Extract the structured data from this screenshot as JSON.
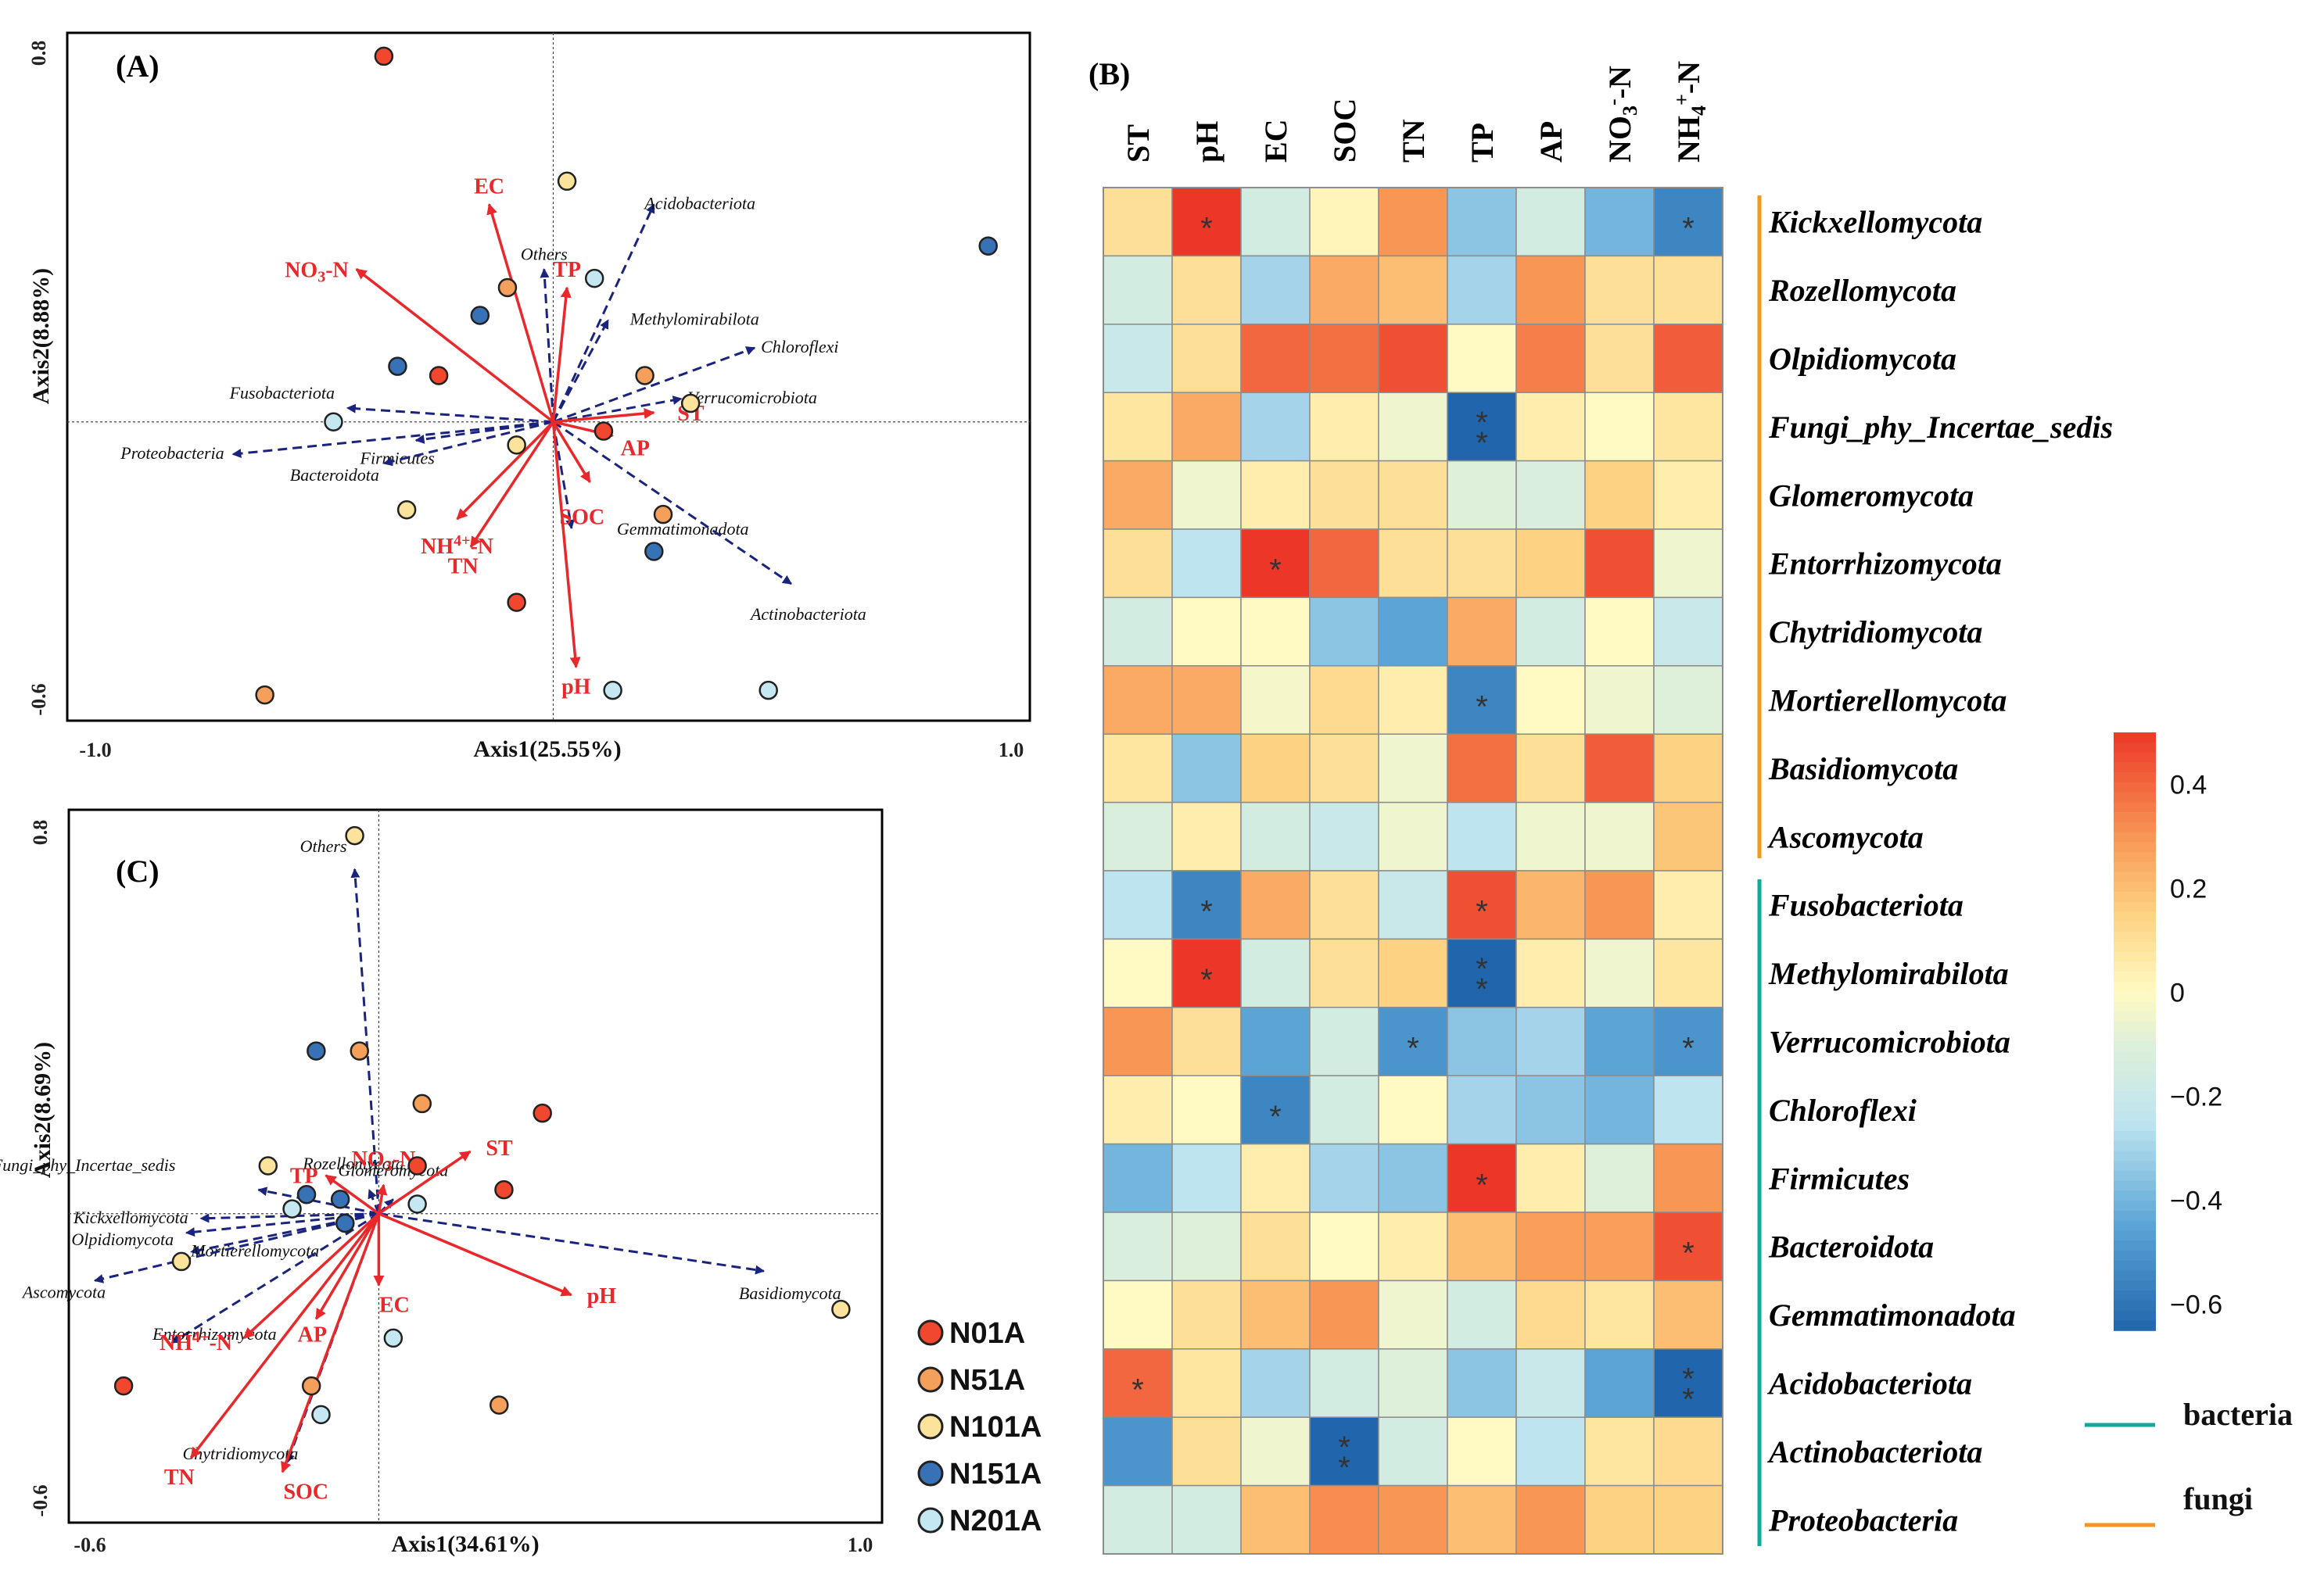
{
  "colors": {
    "env_arrow": "#e8282a",
    "taxa_arrow": "#1a237e",
    "bacteria_line": "#12a99b",
    "fungi_line": "#f0981f",
    "groups": {
      "N01A": "#f0472e",
      "N51A": "#f5a05a",
      "N101A": "#fbe39b",
      "N151A": "#3771b6",
      "N201A": "#c4e7f2"
    }
  },
  "legend": {
    "groups": [
      {
        "name": "N01A",
        "color": "#f0472e"
      },
      {
        "name": "N51A",
        "color": "#f5a05a"
      },
      {
        "name": "N101A",
        "color": "#fbe39b"
      },
      {
        "name": "N151A",
        "color": "#3771b6"
      },
      {
        "name": "N201A",
        "color": "#c4e7f2"
      }
    ],
    "lines": [
      {
        "name": "bacteria",
        "color": "#12a99b"
      },
      {
        "name": "fungi",
        "color": "#f0981f"
      }
    ]
  },
  "chart_data": [
    {
      "panel": "(A)",
      "type": "scatter",
      "xlabel": "Axis1(25.55%)",
      "ylabel": "Axis2(8.88%)",
      "xlim": [
        -1.0,
        1.0
      ],
      "ylim": [
        -0.6,
        0.8
      ],
      "xticks": [
        "-1.0",
        "1.0"
      ],
      "yticks": [
        "0.8",
        "-0.6"
      ],
      "env_vectors": [
        {
          "name": "EC",
          "x": -0.14,
          "y": 0.47
        },
        {
          "name": "NO3-N",
          "x": -0.43,
          "y": 0.33
        },
        {
          "name": "TP",
          "x": 0.03,
          "y": 0.29
        },
        {
          "name": "ST",
          "x": 0.22,
          "y": 0.02
        },
        {
          "name": "AP",
          "x": 0.13,
          "y": -0.03
        },
        {
          "name": "SOC",
          "x": 0.08,
          "y": -0.13
        },
        {
          "name": "NH4+-N",
          "x": -0.21,
          "y": -0.21
        },
        {
          "name": "TN",
          "x": -0.18,
          "y": -0.27
        },
        {
          "name": "pH",
          "x": 0.05,
          "y": -0.53
        }
      ],
      "taxa_vectors": [
        {
          "name": "Acidobacteriota",
          "x": 0.22,
          "y": 0.47
        },
        {
          "name": "Others",
          "x": -0.02,
          "y": 0.33
        },
        {
          "name": "Methylomirabilota",
          "x": 0.12,
          "y": 0.22
        },
        {
          "name": "Chloroflexi",
          "x": 0.44,
          "y": 0.16
        },
        {
          "name": "Verrucomicrobiota",
          "x": 0.28,
          "y": 0.05
        },
        {
          "name": "Fusobacteriota",
          "x": -0.45,
          "y": 0.03
        },
        {
          "name": "Proteobacteria",
          "x": -0.7,
          "y": -0.07
        },
        {
          "name": "Firmicutes",
          "x": -0.3,
          "y": -0.04
        },
        {
          "name": "Bacteroidota",
          "x": -0.37,
          "y": -0.09
        },
        {
          "name": "Gemmatimonadota",
          "x": 0.04,
          "y": -0.23
        },
        {
          "name": "Actinobacteriota",
          "x": 0.52,
          "y": -0.35
        }
      ],
      "points": [
        {
          "group": "N01A",
          "x": -0.37,
          "y": 0.79
        },
        {
          "group": "N01A",
          "x": -0.25,
          "y": 0.1
        },
        {
          "group": "N01A",
          "x": -0.08,
          "y": -0.39
        },
        {
          "group": "N01A",
          "x": 0.11,
          "y": -0.02
        },
        {
          "group": "N51A",
          "x": -0.63,
          "y": -0.59
        },
        {
          "group": "N51A",
          "x": -0.1,
          "y": 0.29
        },
        {
          "group": "N51A",
          "x": 0.2,
          "y": 0.1
        },
        {
          "group": "N51A",
          "x": 0.24,
          "y": -0.2
        },
        {
          "group": "N101A",
          "x": 0.03,
          "y": 0.52
        },
        {
          "group": "N101A",
          "x": 0.3,
          "y": 0.04
        },
        {
          "group": "N101A",
          "x": -0.08,
          "y": -0.05
        },
        {
          "group": "N101A",
          "x": -0.32,
          "y": -0.19
        },
        {
          "group": "N151A",
          "x": -0.16,
          "y": 0.23
        },
        {
          "group": "N151A",
          "x": -0.34,
          "y": 0.12
        },
        {
          "group": "N151A",
          "x": 0.95,
          "y": 0.38
        },
        {
          "group": "N151A",
          "x": 0.22,
          "y": -0.28
        },
        {
          "group": "N201A",
          "x": 0.09,
          "y": 0.31
        },
        {
          "group": "N201A",
          "x": -0.48,
          "y": 0.0
        },
        {
          "group": "N201A",
          "x": 0.13,
          "y": -0.58
        },
        {
          "group": "N201A",
          "x": 0.47,
          "y": -0.58
        }
      ]
    },
    {
      "panel": "(C)",
      "type": "scatter",
      "xlabel": "Axis1(34.61%)",
      "ylabel": "Axis2(8.69%)",
      "xlim": [
        -0.6,
        1.0
      ],
      "ylim": [
        -0.6,
        0.8
      ],
      "xticks": [
        "-0.6",
        "1.0"
      ],
      "yticks": [
        "0.8",
        "-0.6"
      ],
      "env_vectors": [
        {
          "name": "NO3-N",
          "x": 0.01,
          "y": 0.06
        },
        {
          "name": "ST",
          "x": 0.19,
          "y": 0.13
        },
        {
          "name": "TP",
          "x": -0.11,
          "y": 0.08
        },
        {
          "name": "EC",
          "x": 0.0,
          "y": -0.15
        },
        {
          "name": "pH",
          "x": 0.4,
          "y": -0.17
        },
        {
          "name": "AP",
          "x": -0.13,
          "y": -0.22
        },
        {
          "name": "NH4+-N",
          "x": -0.28,
          "y": -0.26
        },
        {
          "name": "TN",
          "x": -0.39,
          "y": -0.51
        },
        {
          "name": "SOC",
          "x": -0.2,
          "y": -0.54
        }
      ],
      "taxa_vectors": [
        {
          "name": "Others",
          "x": -0.05,
          "y": 0.72
        },
        {
          "name": "Rozellomycota",
          "x": -0.02,
          "y": 0.05
        },
        {
          "name": "Fungi_phy_Incertae_sedis",
          "x": -0.25,
          "y": 0.05
        },
        {
          "name": "Kickxellomycota",
          "x": -0.37,
          "y": -0.01
        },
        {
          "name": "Olpidiomycota",
          "x": -0.4,
          "y": -0.04
        },
        {
          "name": "Mortierellomycota",
          "x": -0.39,
          "y": -0.08
        },
        {
          "name": "Ascomycota",
          "x": -0.59,
          "y": -0.14
        },
        {
          "name": "Entorrhizomycota",
          "x": -0.43,
          "y": -0.27
        },
        {
          "name": "Glomeromycota",
          "x": 0.03,
          "y": 0.03
        },
        {
          "name": "Basidiomycota",
          "x": 0.8,
          "y": -0.12
        },
        {
          "name": "Chytridiomycota",
          "x": -0.19,
          "y": -0.52
        }
      ],
      "points": [
        {
          "group": "N01A",
          "x": 0.34,
          "y": 0.21
        },
        {
          "group": "N01A",
          "x": 0.08,
          "y": 0.1
        },
        {
          "group": "N01A",
          "x": 0.26,
          "y": 0.05
        },
        {
          "group": "N01A",
          "x": -0.53,
          "y": -0.36
        },
        {
          "group": "N51A",
          "x": -0.04,
          "y": 0.34
        },
        {
          "group": "N51A",
          "x": 0.09,
          "y": 0.23
        },
        {
          "group": "N51A",
          "x": 0.25,
          "y": -0.4
        },
        {
          "group": "N51A",
          "x": -0.14,
          "y": -0.36
        },
        {
          "group": "N101A",
          "x": -0.05,
          "y": 0.79
        },
        {
          "group": "N101A",
          "x": -0.23,
          "y": 0.1
        },
        {
          "group": "N101A",
          "x": -0.41,
          "y": -0.1
        },
        {
          "group": "N101A",
          "x": 0.96,
          "y": -0.2
        },
        {
          "group": "N151A",
          "x": -0.13,
          "y": 0.34
        },
        {
          "group": "N151A",
          "x": -0.15,
          "y": 0.04
        },
        {
          "group": "N151A",
          "x": -0.08,
          "y": 0.03
        },
        {
          "group": "N151A",
          "x": -0.07,
          "y": -0.02
        },
        {
          "group": "N201A",
          "x": -0.18,
          "y": 0.01
        },
        {
          "group": "N201A",
          "x": 0.08,
          "y": 0.02
        },
        {
          "group": "N201A",
          "x": 0.03,
          "y": -0.26
        },
        {
          "group": "N201A",
          "x": -0.12,
          "y": -0.42
        }
      ]
    },
    {
      "panel": "(B)",
      "type": "heatmap",
      "columns": [
        "ST",
        "pH",
        "EC",
        "SOC",
        "TN",
        "TP",
        "AP",
        "NO3- -N",
        "NH4+-N"
      ],
      "rows": [
        "Kickxellomycota",
        "Rozellomycota",
        "Olpidiomycota",
        "Fungi_phy_Incertae_sedis",
        "Glomeromycota",
        "Entorrhizomycota",
        "Chytridiomycota",
        "Mortierellomycota",
        "Basidiomycota",
        "Ascomycota",
        "Fusobacteriota",
        "Methylomirabilota",
        "Verrucomicrobiota",
        "Chloroflexi",
        "Firmicutes",
        "Bacteroidota",
        "Gemmatimonadota",
        "Acidobacteriota",
        "Actinobacteriota",
        "Proteobacteria"
      ],
      "row_groups": [
        {
          "name": "fungi",
          "from": 0,
          "to": 9
        },
        {
          "name": "bacteria",
          "from": 10,
          "to": 19
        }
      ],
      "values": [
        [
          0.1,
          0.5,
          -0.15,
          0.02,
          0.3,
          -0.35,
          -0.15,
          -0.4,
          -0.55
        ],
        [
          -0.15,
          0.1,
          -0.3,
          0.25,
          0.2,
          -0.3,
          0.3,
          0.1,
          0.1
        ],
        [
          -0.2,
          0.1,
          0.4,
          0.38,
          0.45,
          0.0,
          0.35,
          0.1,
          0.42
        ],
        [
          0.08,
          0.25,
          -0.3,
          0.05,
          -0.05,
          -0.65,
          0.05,
          0.0,
          0.08
        ],
        [
          0.25,
          -0.05,
          0.05,
          0.1,
          0.1,
          -0.1,
          -0.12,
          0.15,
          0.05
        ],
        [
          0.1,
          -0.25,
          0.5,
          0.4,
          0.1,
          0.1,
          0.15,
          0.45,
          -0.05
        ],
        [
          -0.15,
          0.0,
          0.0,
          -0.35,
          -0.45,
          0.25,
          -0.15,
          0.0,
          -0.2
        ],
        [
          0.25,
          0.25,
          -0.03,
          0.12,
          0.05,
          -0.55,
          0.0,
          -0.05,
          -0.1
        ],
        [
          0.08,
          -0.35,
          0.15,
          0.1,
          -0.05,
          0.38,
          0.1,
          0.42,
          0.15
        ],
        [
          -0.12,
          0.05,
          -0.15,
          -0.2,
          -0.05,
          -0.25,
          -0.05,
          -0.05,
          0.18
        ],
        [
          -0.25,
          -0.55,
          0.25,
          0.1,
          -0.2,
          0.45,
          0.22,
          0.3,
          0.05
        ],
        [
          0.0,
          0.5,
          -0.15,
          0.1,
          0.15,
          -0.65,
          0.05,
          -0.05,
          0.08
        ],
        [
          0.3,
          0.1,
          -0.45,
          -0.15,
          -0.5,
          -0.35,
          -0.3,
          -0.45,
          -0.5
        ],
        [
          0.05,
          0.0,
          -0.55,
          -0.15,
          0.0,
          -0.3,
          -0.35,
          -0.4,
          -0.25
        ],
        [
          -0.4,
          -0.25,
          0.05,
          -0.3,
          -0.35,
          0.5,
          0.05,
          -0.1,
          0.3
        ],
        [
          -0.12,
          -0.1,
          0.1,
          0.0,
          0.05,
          0.2,
          0.28,
          0.28,
          0.45
        ],
        [
          0.0,
          0.1,
          0.2,
          0.3,
          -0.05,
          -0.15,
          0.12,
          0.08,
          0.2
        ],
        [
          0.4,
          0.08,
          -0.3,
          -0.15,
          -0.1,
          -0.35,
          -0.2,
          -0.45,
          -0.65
        ],
        [
          -0.5,
          0.1,
          -0.05,
          -0.65,
          -0.15,
          0.0,
          -0.25,
          0.08,
          0.12
        ],
        [
          -0.15,
          -0.15,
          0.2,
          0.32,
          0.3,
          0.2,
          0.3,
          0.15,
          0.15
        ]
      ],
      "significance": [
        [
          "",
          "*",
          "",
          "",
          "",
          "",
          "",
          "",
          "*"
        ],
        [
          "",
          "",
          "",
          "",
          "",
          "",
          "",
          "",
          ""
        ],
        [
          "",
          "",
          "",
          "",
          "",
          "",
          "",
          "",
          ""
        ],
        [
          "",
          "",
          "",
          "",
          "",
          "**",
          "",
          "",
          ""
        ],
        [
          "",
          "",
          "",
          "",
          "",
          "",
          "",
          "",
          ""
        ],
        [
          "",
          "",
          "*",
          "",
          "",
          "",
          "",
          "",
          ""
        ],
        [
          "",
          "",
          "",
          "",
          "",
          "",
          "",
          "",
          ""
        ],
        [
          "",
          "",
          "",
          "",
          "",
          "*",
          "",
          "",
          ""
        ],
        [
          "",
          "",
          "",
          "",
          "",
          "",
          "",
          "",
          ""
        ],
        [
          "",
          "",
          "",
          "",
          "",
          "",
          "",
          "",
          ""
        ],
        [
          "",
          "*",
          "",
          "",
          "",
          "*",
          "",
          "",
          ""
        ],
        [
          "",
          "*",
          "",
          "",
          "",
          "**",
          "",
          "",
          ""
        ],
        [
          "",
          "",
          "",
          "",
          "*",
          "",
          "",
          "",
          "*"
        ],
        [
          "",
          "",
          "*",
          "",
          "",
          "",
          "",
          "",
          ""
        ],
        [
          "",
          "",
          "",
          "",
          "",
          "*",
          "",
          "",
          ""
        ],
        [
          "",
          "",
          "",
          "",
          "",
          "",
          "",
          "",
          "*"
        ],
        [
          "",
          "",
          "",
          "",
          "",
          "",
          "",
          "",
          ""
        ],
        [
          "*",
          "",
          "",
          "",
          "",
          "",
          "",
          "",
          "**"
        ],
        [
          "",
          "",
          "",
          "**",
          "",
          "",
          "",
          "",
          ""
        ],
        [
          "",
          "",
          "",
          "",
          "",
          "",
          "",
          "",
          ""
        ]
      ],
      "colorbar": {
        "ticks": [
          "0.4",
          "0.2",
          "0",
          "−0.2",
          "−0.4",
          "−0.6"
        ],
        "range": [
          -0.65,
          0.5
        ]
      }
    }
  ]
}
